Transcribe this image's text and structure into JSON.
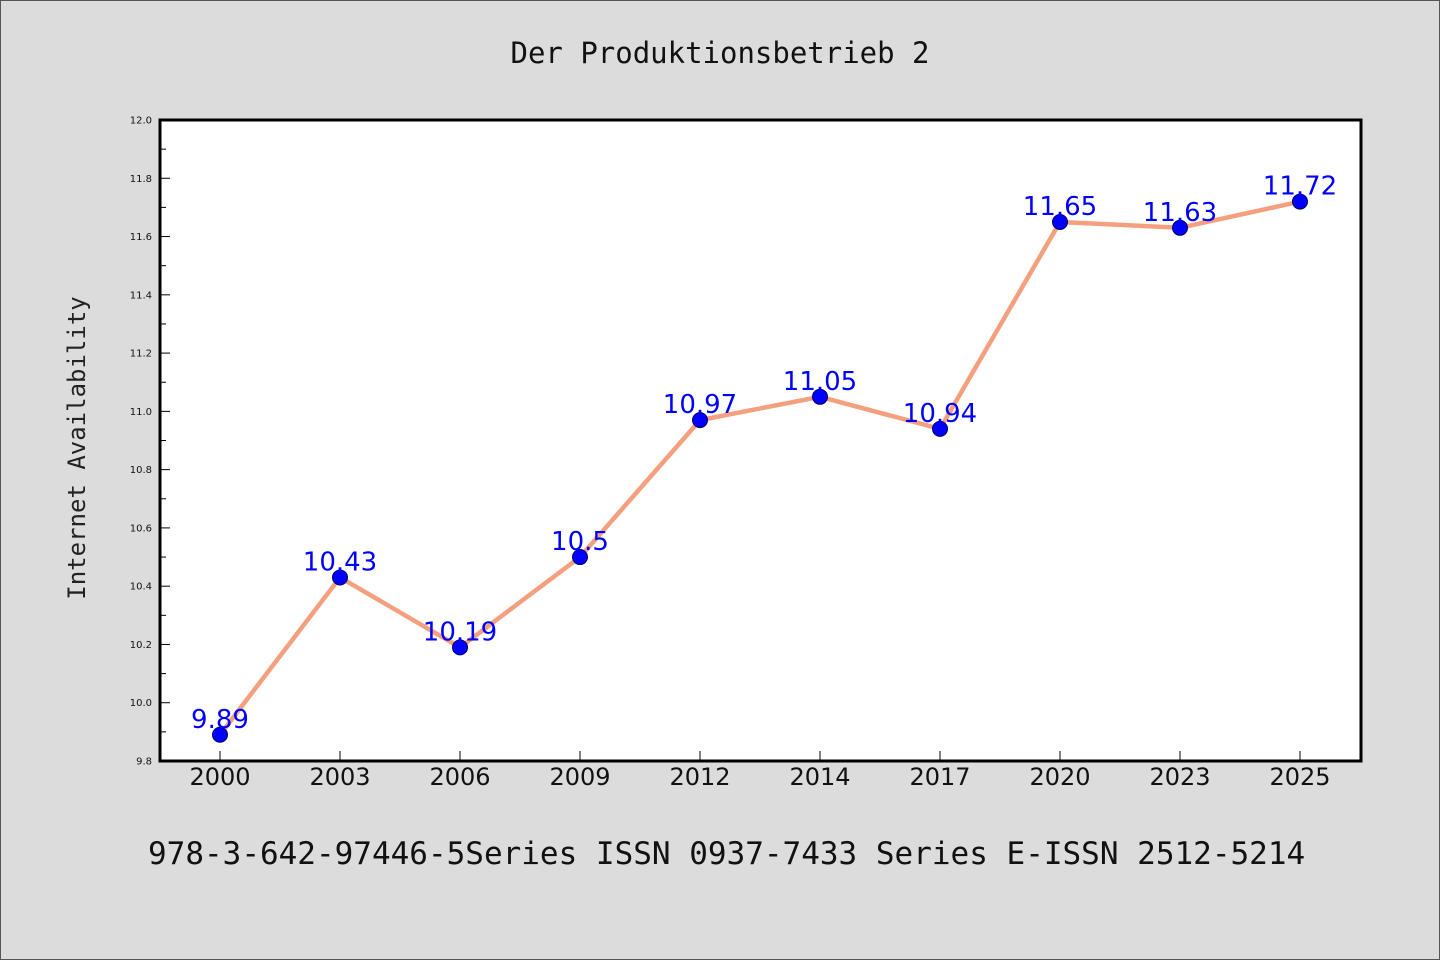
{
  "chart_data": {
    "type": "line",
    "title": "Der Produktionsbetrieb 2",
    "xlabel": "",
    "ylabel": "Internet Availability",
    "categories": [
      "2000",
      "2003",
      "2006",
      "2009",
      "2012",
      "2014",
      "2017",
      "2020",
      "2023",
      "2025"
    ],
    "series": [
      {
        "values": [
          9.89,
          10.43,
          10.19,
          10.5,
          10.97,
          11.05,
          10.94,
          11.65,
          11.63,
          11.72
        ],
        "data_labels": [
          "9.89",
          "10.43",
          "10.19",
          "10.5",
          "10.97",
          "11.05",
          "10.94",
          "11.65",
          "11.63",
          "11.72"
        ],
        "line_color": "#f4a07e",
        "marker_color": "#0000ff"
      }
    ],
    "ylim": [
      9.8,
      12.0
    ],
    "yticks": [
      "9.8",
      "10.0",
      "10.2",
      "10.4",
      "10.6",
      "10.8",
      "11.0",
      "11.2",
      "11.4",
      "11.6",
      "11.8",
      "12.0"
    ],
    "grid": false,
    "legend": "none",
    "plot_background": "#ffffff",
    "page_background": "#dcdcdc"
  },
  "footer_text": "978-3-642-97446-5Series ISSN 0937-7433 Series E-ISSN 2512-5214"
}
